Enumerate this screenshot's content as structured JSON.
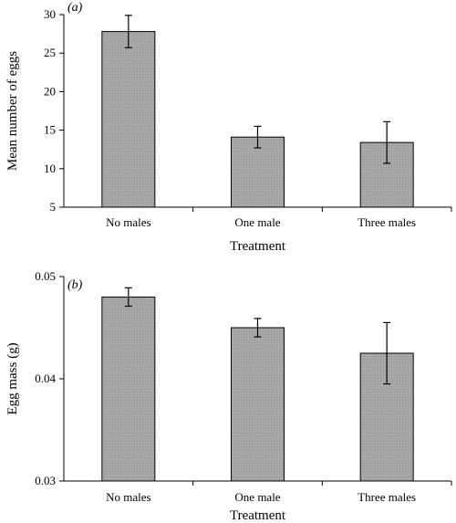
{
  "chart_data": [
    {
      "type": "bar",
      "panel_label": "(a)",
      "categories": [
        "No males",
        "One male",
        "Three males"
      ],
      "values": [
        27.8,
        14.1,
        13.4
      ],
      "errors": [
        2.1,
        1.4,
        2.7
      ],
      "xlabel": "Treatment",
      "ylabel": "Mean number of eggs",
      "ylim": [
        5,
        30
      ],
      "yticks": [
        5,
        10,
        15,
        20,
        25,
        30
      ],
      "ytick_labels": [
        "5",
        "10",
        "15",
        "20",
        "25",
        "30"
      ],
      "bar_color": "#a8a8a8",
      "grid": false
    },
    {
      "type": "bar",
      "panel_label": "(b)",
      "categories": [
        "No males",
        "One male",
        "Three males"
      ],
      "values": [
        0.048,
        0.045,
        0.0425
      ],
      "errors": [
        0.0009,
        0.0009,
        0.003
      ],
      "xlabel": "Treatment",
      "ylabel": "Egg mass (g)",
      "ylim": [
        0.03,
        0.05
      ],
      "yticks": [
        0.03,
        0.04,
        0.05
      ],
      "ytick_labels": [
        "0.03",
        "0.04",
        "0.05"
      ],
      "bar_color": "#a8a8a8",
      "grid": false
    }
  ]
}
